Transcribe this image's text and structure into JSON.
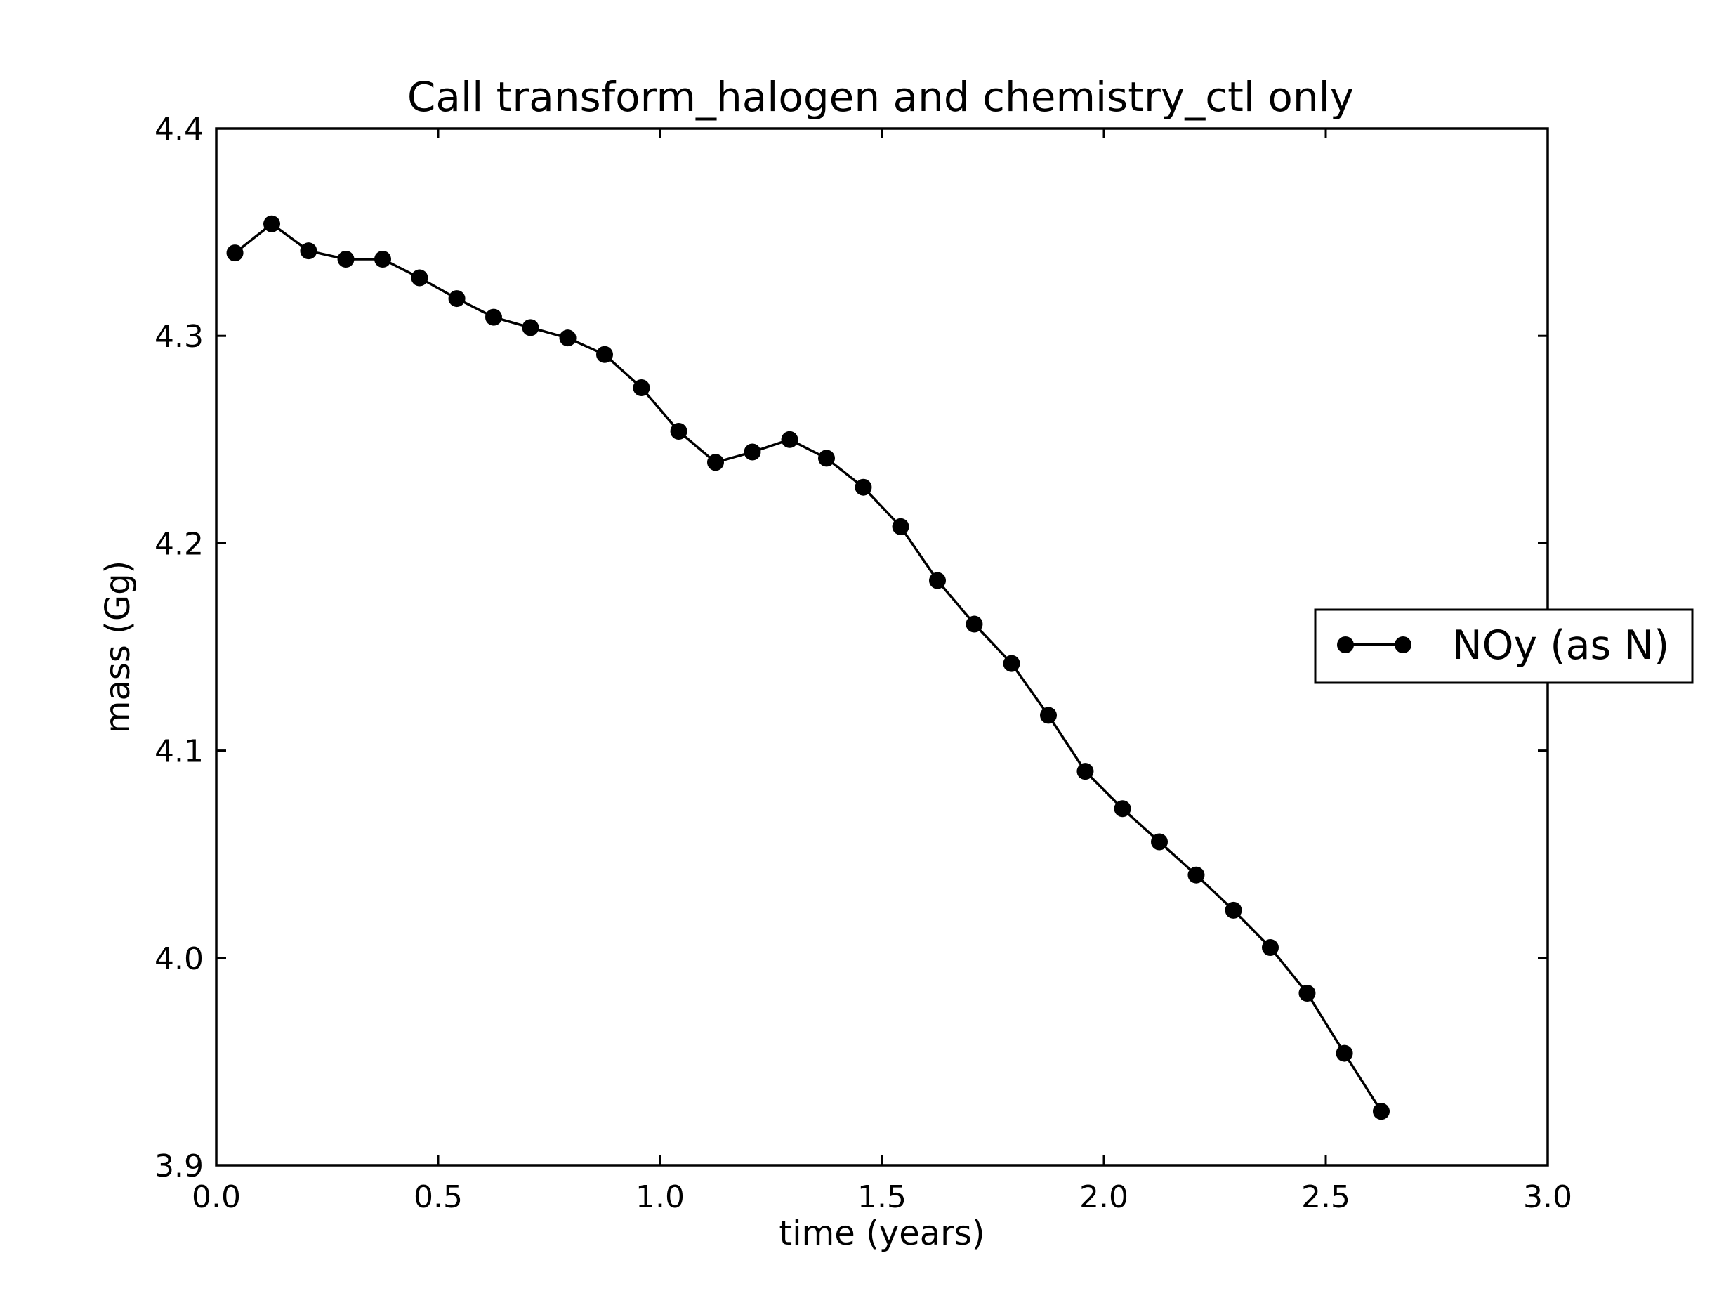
{
  "chart_data": {
    "type": "line",
    "title": "Call transform_halogen and chemistry_ctl only",
    "xlabel": "time (years)",
    "ylabel": "mass (Gg)",
    "xlim": [
      0.0,
      3.0
    ],
    "ylim": [
      3.9,
      4.4
    ],
    "xticks": [
      "0.0",
      "0.5",
      "1.0",
      "1.5",
      "2.0",
      "2.5",
      "3.0"
    ],
    "yticks": [
      "3.9",
      "4.0",
      "4.1",
      "4.2",
      "4.3",
      "4.4"
    ],
    "grid": false,
    "legend_position": "right, outside axes",
    "series": [
      {
        "name": "NOy (as N)",
        "color": "#000000",
        "marker": "circle",
        "x": [
          0.042,
          0.125,
          0.208,
          0.292,
          0.375,
          0.458,
          0.542,
          0.625,
          0.708,
          0.792,
          0.875,
          0.958,
          1.042,
          1.125,
          1.208,
          1.292,
          1.375,
          1.458,
          1.542,
          1.625,
          1.708,
          1.792,
          1.875,
          1.958,
          2.042,
          2.125,
          2.208,
          2.292,
          2.375,
          2.458,
          2.542,
          2.625
        ],
        "y": [
          4.34,
          4.354,
          4.341,
          4.337,
          4.337,
          4.328,
          4.318,
          4.309,
          4.304,
          4.299,
          4.291,
          4.275,
          4.254,
          4.239,
          4.244,
          4.25,
          4.241,
          4.227,
          4.208,
          4.182,
          4.161,
          4.142,
          4.117,
          4.09,
          4.072,
          4.056,
          4.04,
          4.023,
          4.005,
          3.983,
          3.954,
          3.926
        ]
      }
    ]
  }
}
